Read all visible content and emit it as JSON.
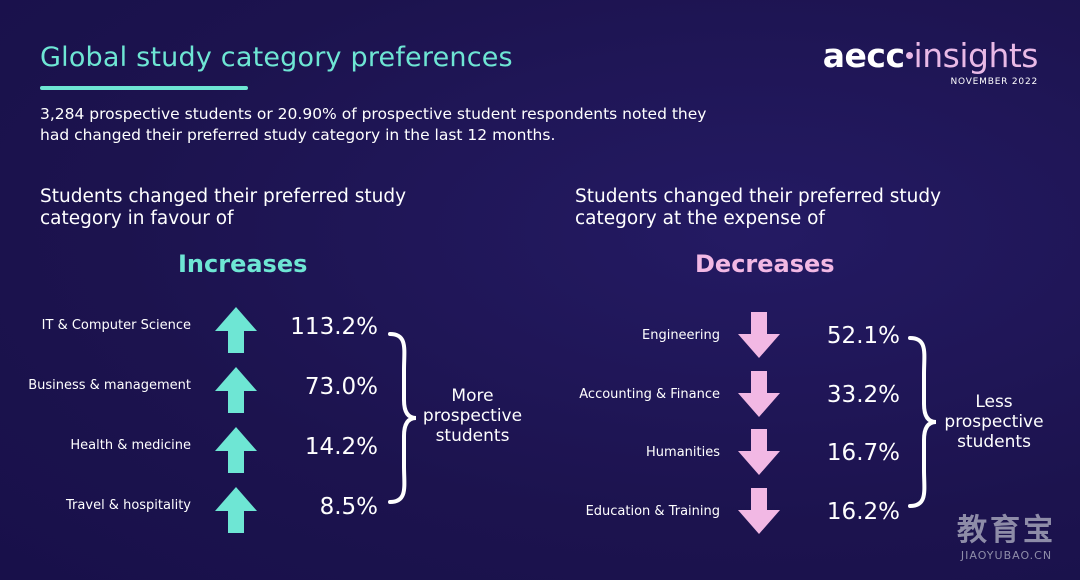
{
  "header": {
    "title": "Global study category preferences",
    "logo_brand_a": "aecc",
    "logo_brand_b": "insights",
    "logo_date": "NOVEMBER 2022"
  },
  "intro": "3,284 prospective students or 20.90% of prospective student respondents noted they had changed their preferred study category in the last 12 months.",
  "increases": {
    "heading": "Students changed their preferred study category in favour of",
    "title": "Increases",
    "color": "#6ee6d4",
    "brace_label": "More prospective students",
    "items": [
      {
        "label": "IT & Computer Science",
        "value": "113.2%"
      },
      {
        "label": "Business & management",
        "value": "73.0%"
      },
      {
        "label": "Health & medicine",
        "value": "14.2%"
      },
      {
        "label": "Travel & hospitality",
        "value": "8.5%"
      }
    ]
  },
  "decreases": {
    "heading": "Students changed their preferred study category at the expense of",
    "title": "Decreases",
    "color": "#f2b8e4",
    "brace_label": "Less prospective students",
    "items": [
      {
        "label": "Engineering",
        "value": "52.1%"
      },
      {
        "label": "Accounting & Finance",
        "value": "33.2%"
      },
      {
        "label": "Humanities",
        "value": "16.7%"
      },
      {
        "label": "Education & Training",
        "value": "16.2%"
      }
    ]
  },
  "watermark": {
    "main": "教育宝",
    "sub": "JIAOYUBAO.CN"
  },
  "icons": {
    "up_arrow": "arrow-up-icon",
    "down_arrow": "arrow-down-icon"
  }
}
